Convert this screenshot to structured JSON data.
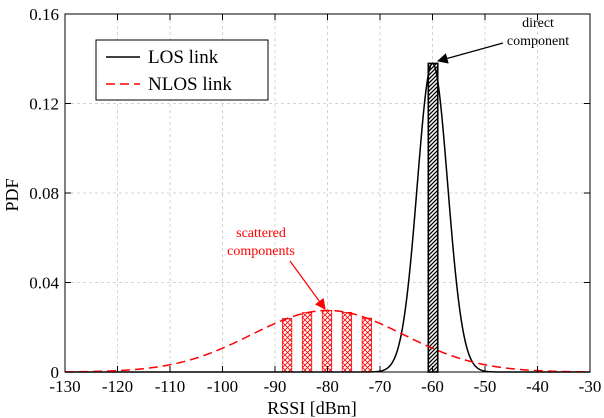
{
  "chart_data": {
    "type": "line",
    "xlabel": "RSSI [dBm]",
    "ylabel": "PDF",
    "xlim": [
      -130,
      -30
    ],
    "ylim": [
      0,
      0.16
    ],
    "xticks": [
      -130,
      -120,
      -110,
      -100,
      -90,
      -80,
      -70,
      -60,
      -50,
      -40,
      -30
    ],
    "yticks": [
      0,
      0.04,
      0.08,
      0.12,
      0.16
    ],
    "xtick_labels": [
      "-130",
      "-120",
      "-110",
      "-100",
      "-90",
      "-80",
      "-70",
      "-60",
      "-50",
      "-40",
      "-30"
    ],
    "ytick_labels": [
      "0",
      "0.04",
      "0.08",
      "0.12",
      "0.16"
    ],
    "grid": true,
    "legend_position": "top-left",
    "series": [
      {
        "name": "LOS link",
        "color": "#000000",
        "style": "solid",
        "distribution": "gaussian",
        "mean": -60,
        "std": 2.9,
        "peak": 0.138
      },
      {
        "name": "NLOS link",
        "color": "#ff0000",
        "style": "dashed",
        "distribution": "gaussian",
        "mean": -80,
        "std": 14.5,
        "peak": 0.0275
      }
    ],
    "hatched_bars": [
      {
        "series": "NLOS link",
        "x_start": -88.6,
        "x_end": -86.8
      },
      {
        "series": "NLOS link",
        "x_start": -84.8,
        "x_end": -83.0
      },
      {
        "series": "NLOS link",
        "x_start": -81.0,
        "x_end": -79.2
      },
      {
        "series": "NLOS link",
        "x_start": -77.2,
        "x_end": -75.4
      },
      {
        "series": "NLOS link",
        "x_start": -73.4,
        "x_end": -71.6
      },
      {
        "series": "LOS link",
        "x_start": -60.8,
        "x_end": -59.0
      }
    ],
    "annotations": [
      {
        "text_lines": [
          "direct",
          "component"
        ],
        "color": "#000000",
        "target_x": -60,
        "target_y": 0.138
      },
      {
        "text_lines": [
          "scattered",
          "components"
        ],
        "color": "#ff0000",
        "target_x": -80,
        "target_y": 0.0275
      }
    ]
  }
}
